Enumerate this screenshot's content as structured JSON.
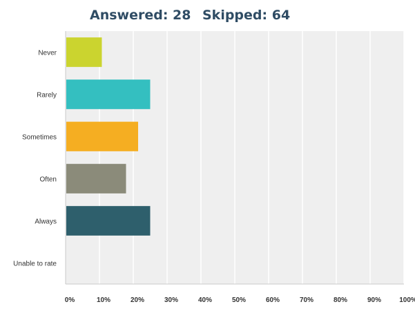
{
  "header": {
    "answered": "Answered: 28",
    "skipped": "Skipped: 64"
  },
  "colors": {
    "plot_background": "#efefef",
    "gridline": "#ffffff",
    "axis": "#c9c9c9",
    "label_text": "#333333"
  },
  "chart_data": {
    "type": "bar",
    "orientation": "horizontal",
    "title": "",
    "xlabel": "",
    "ylabel": "",
    "xlim": [
      0,
      100
    ],
    "grid": true,
    "legend": "none",
    "x_ticks": [
      "0%",
      "10%",
      "20%",
      "30%",
      "40%",
      "50%",
      "60%",
      "70%",
      "80%",
      "90%",
      "100%"
    ],
    "categories": [
      "Never",
      "Rarely",
      "Sometimes",
      "Often",
      "Always",
      "Unable to rate"
    ],
    "values": [
      10.71,
      25.0,
      21.43,
      17.86,
      25.0,
      0
    ],
    "colors": [
      "#cbd42f",
      "#34bfc0",
      "#f5ae22",
      "#8b8b7a",
      "#2e5f6c",
      "#999999"
    ]
  }
}
